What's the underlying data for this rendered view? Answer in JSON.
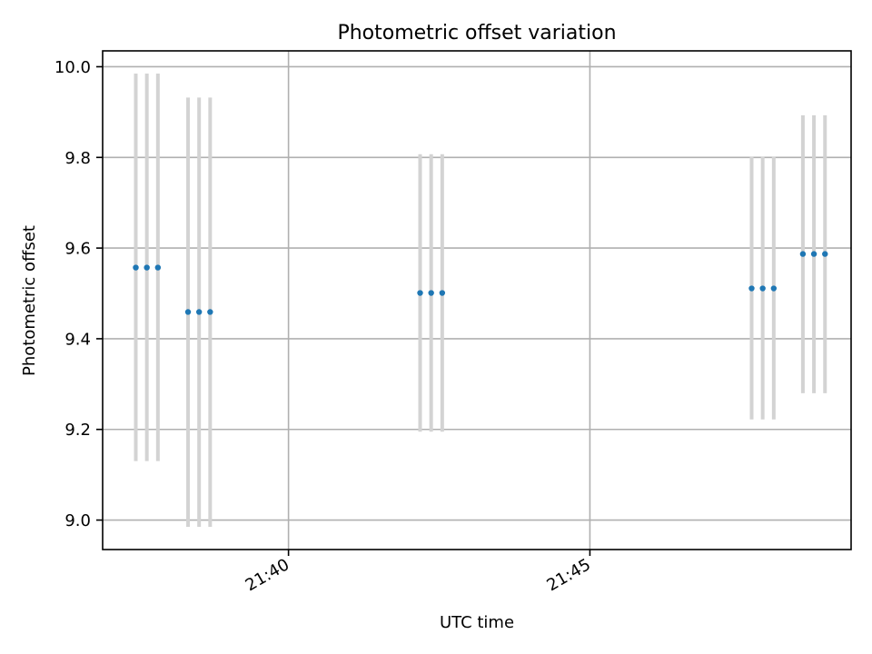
{
  "chart_data": {
    "type": "scatter",
    "title": "Photometric offset variation",
    "xlabel": "UTC time",
    "ylabel": "Photometric offset",
    "xlim": [
      "21:36:55",
      "21:49:20"
    ],
    "ylim": [
      8.935,
      10.035
    ],
    "x_ticks": [
      "21:40",
      "21:45"
    ],
    "y_ticks": [
      9.0,
      9.2,
      9.4,
      9.6,
      9.8,
      10.0
    ],
    "y_tick_labels": [
      "9.0",
      "9.2",
      "9.4",
      "9.6",
      "9.8",
      "10.0"
    ],
    "grid": true,
    "colors": {
      "point": "#1f77b4",
      "errorbar": "#d3d3d3",
      "grid": "#b0b0b0"
    },
    "series": [
      {
        "points": [
          {
            "x": "21:37:28",
            "y": 9.557,
            "ymin": 9.13,
            "ymax": 9.985
          },
          {
            "x": "21:37:39",
            "y": 9.557,
            "ymin": 9.13,
            "ymax": 9.985
          },
          {
            "x": "21:37:50",
            "y": 9.557,
            "ymin": 9.13,
            "ymax": 9.985
          },
          {
            "x": "21:38:20",
            "y": 9.459,
            "ymin": 8.985,
            "ymax": 9.932
          },
          {
            "x": "21:38:31",
            "y": 9.459,
            "ymin": 8.985,
            "ymax": 9.932
          },
          {
            "x": "21:38:42",
            "y": 9.459,
            "ymin": 8.985,
            "ymax": 9.932
          },
          {
            "x": "21:42:11",
            "y": 9.501,
            "ymin": 9.195,
            "ymax": 9.807
          },
          {
            "x": "21:42:22",
            "y": 9.501,
            "ymin": 9.195,
            "ymax": 9.807
          },
          {
            "x": "21:42:33",
            "y": 9.501,
            "ymin": 9.195,
            "ymax": 9.807
          },
          {
            "x": "21:47:41",
            "y": 9.511,
            "ymin": 9.222,
            "ymax": 9.801
          },
          {
            "x": "21:47:52",
            "y": 9.511,
            "ymin": 9.222,
            "ymax": 9.801
          },
          {
            "x": "21:48:03",
            "y": 9.511,
            "ymin": 9.222,
            "ymax": 9.801
          },
          {
            "x": "21:48:32",
            "y": 9.587,
            "ymin": 9.28,
            "ymax": 9.893
          },
          {
            "x": "21:48:43",
            "y": 9.587,
            "ymin": 9.28,
            "ymax": 9.893
          },
          {
            "x": "21:48:54",
            "y": 9.587,
            "ymin": 9.28,
            "ymax": 9.893
          }
        ]
      }
    ]
  }
}
